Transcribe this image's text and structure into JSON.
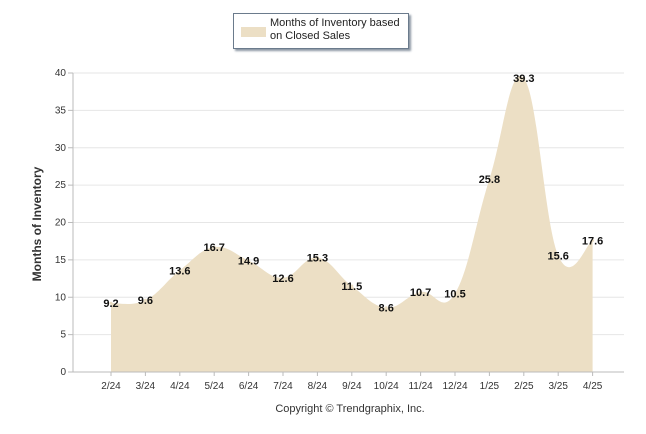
{
  "legend": {
    "label": "Months of Inventory based on Closed Sales"
  },
  "footer": "Copyright © Trendgraphix, Inc.",
  "colors": {
    "fill": "#ecdfc5",
    "grid": "#e6e6e6",
    "axis": "#bbbbbb"
  },
  "chart_data": {
    "type": "area",
    "categories": [
      "2/24",
      "3/24",
      "4/24",
      "5/24",
      "6/24",
      "7/24",
      "8/24",
      "9/24",
      "10/24",
      "11/24",
      "12/24",
      "1/25",
      "2/25",
      "3/25",
      "4/25"
    ],
    "series": [
      {
        "name": "Months of Inventory based on Closed Sales",
        "values": [
          9.2,
          9.6,
          13.6,
          16.7,
          14.9,
          12.6,
          15.3,
          11.5,
          8.6,
          10.7,
          10.5,
          25.8,
          39.3,
          15.6,
          17.6
        ]
      }
    ],
    "ylabel": "Months of Inventory",
    "ylim": [
      0,
      40
    ],
    "yticks": [
      0,
      5,
      10,
      15,
      20,
      25,
      30,
      35,
      40
    ],
    "grid": true,
    "legend_position": "top-center"
  }
}
